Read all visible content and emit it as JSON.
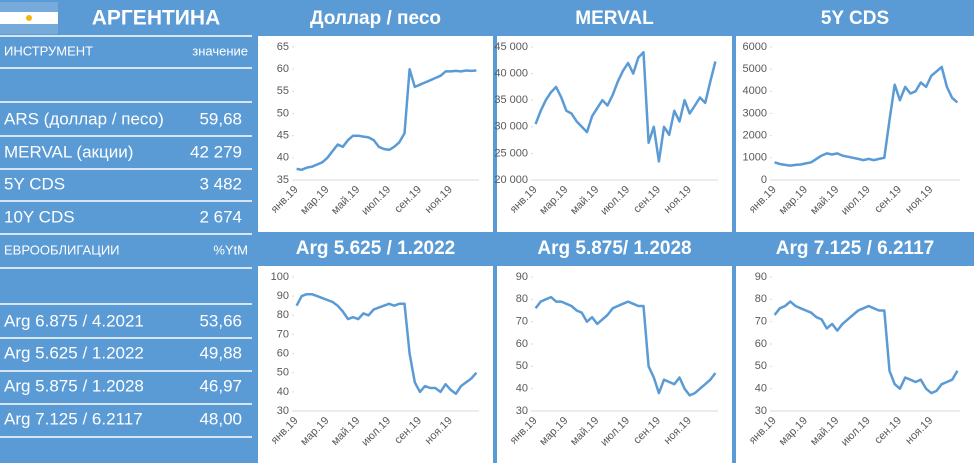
{
  "header": {
    "title": "АРГЕНТИНА"
  },
  "instruments": {
    "header": [
      "ИНСТРУМЕНТ",
      "значение"
    ],
    "rows": [
      [
        "ARS (доллар / песо)",
        "59,68"
      ],
      [
        "MERVAL (акции)",
        "42 279"
      ],
      [
        "5Y CDS",
        "3 482"
      ],
      [
        "10Y CDS",
        "2 674"
      ]
    ]
  },
  "eurobonds": {
    "header": [
      "ЕВРООБЛИГАЦИИ",
      "%YtM"
    ],
    "rows": [
      [
        "Arg 6.875 / 4.2021",
        "53,66"
      ],
      [
        "Arg 5.625 / 1.2022",
        "49,88"
      ],
      [
        "Arg 5.875 / 1.2028",
        "46,97"
      ],
      [
        "Arg 7.125 / 6.2117",
        "48,00"
      ]
    ]
  },
  "chart_data": [
    {
      "type": "line",
      "title": "Доллар / песо",
      "color": "#5b9bd5",
      "categories": [
        "янв.19",
        null,
        null,
        null,
        null,
        null,
        "мар.19",
        null,
        null,
        null,
        null,
        null,
        "май.19",
        null,
        null,
        null,
        null,
        null,
        "июл.19",
        null,
        null,
        null,
        null,
        null,
        "сен.19",
        null,
        null,
        null,
        null,
        null,
        "ноя.19",
        null,
        null,
        null,
        null,
        null
      ],
      "values": [
        37.5,
        37.3,
        37.8,
        38.0,
        38.5,
        39.0,
        40.0,
        41.5,
        43.0,
        42.5,
        44.0,
        45.0,
        45.0,
        44.8,
        44.6,
        44.0,
        42.5,
        42.0,
        41.8,
        42.5,
        43.5,
        45.5,
        60.0,
        56.0,
        56.5,
        57.0,
        57.5,
        58.0,
        58.5,
        59.5,
        59.5,
        59.6,
        59.5,
        59.7,
        59.6,
        59.7
      ],
      "ylim": [
        35,
        65
      ],
      "yticks": [
        35,
        40,
        45,
        50,
        55,
        60,
        65
      ]
    },
    {
      "type": "line",
      "title": "MERVAL",
      "color": "#5b9bd5",
      "categories": [
        "янв.19",
        null,
        null,
        null,
        null,
        null,
        "мар.19",
        null,
        null,
        null,
        null,
        null,
        "май.19",
        null,
        null,
        null,
        null,
        null,
        "июл.19",
        null,
        null,
        null,
        null,
        null,
        "сен.19",
        null,
        null,
        null,
        null,
        null,
        "ноя.19",
        null,
        null,
        null,
        null,
        null
      ],
      "values": [
        30500,
        33000,
        35000,
        36500,
        37500,
        35500,
        33000,
        32500,
        31000,
        30000,
        29000,
        32000,
        33500,
        35000,
        34000,
        36000,
        38500,
        40500,
        42000,
        40000,
        43000,
        44000,
        27000,
        30000,
        23500,
        30000,
        28500,
        33000,
        31000,
        35000,
        32500,
        34000,
        35500,
        34500,
        38500,
        42300
      ],
      "ylim": [
        20000,
        45000
      ],
      "yticks": [
        {
          "value": 20000,
          "label": "20 000"
        },
        {
          "value": 25000,
          "label": "25 000"
        },
        {
          "value": 30000,
          "label": "30 000"
        },
        {
          "value": 35000,
          "label": "35 000"
        },
        {
          "value": 40000,
          "label": "40 000"
        },
        {
          "value": 45000,
          "label": "45 000"
        }
      ]
    },
    {
      "type": "line",
      "title": "5Y CDS",
      "color": "#5b9bd5",
      "categories": [
        "янв.19",
        null,
        null,
        null,
        null,
        null,
        "мар.19",
        null,
        null,
        null,
        null,
        null,
        "май.19",
        null,
        null,
        null,
        null,
        null,
        "июл.19",
        null,
        null,
        null,
        null,
        null,
        "сен.19",
        null,
        null,
        null,
        null,
        null,
        "ноя.19",
        null,
        null,
        null,
        null,
        null
      ],
      "values": [
        800,
        720,
        680,
        650,
        680,
        700,
        750,
        800,
        950,
        1100,
        1200,
        1150,
        1200,
        1100,
        1050,
        1000,
        950,
        900,
        950,
        900,
        950,
        1000,
        2700,
        4300,
        3600,
        4200,
        3900,
        4000,
        4400,
        4200,
        4700,
        4900,
        5100,
        4200,
        3700,
        3500
      ],
      "ylim": [
        0,
        6000
      ],
      "yticks": [
        0,
        1000,
        2000,
        3000,
        4000,
        5000,
        6000
      ]
    },
    {
      "type": "line",
      "title": "Arg 5.625 / 1.2022",
      "color": "#5b9bd5",
      "categories": [
        "янв.19",
        null,
        null,
        null,
        null,
        null,
        "мар.19",
        null,
        null,
        null,
        null,
        null,
        "май.19",
        null,
        null,
        null,
        null,
        null,
        "июл.19",
        null,
        null,
        null,
        null,
        null,
        "сен.19",
        null,
        null,
        null,
        null,
        null,
        "ноя.19",
        null,
        null,
        null,
        null,
        null
      ],
      "values": [
        85,
        90,
        91,
        91,
        90,
        89,
        88,
        87,
        85,
        82,
        78,
        79,
        78,
        81,
        80,
        83,
        84,
        85,
        86,
        85,
        86,
        86,
        60,
        45,
        40,
        43,
        42,
        42,
        40,
        44,
        41,
        39,
        43,
        45,
        47,
        50
      ],
      "ylim": [
        30,
        100
      ],
      "yticks": [
        30,
        40,
        50,
        60,
        70,
        80,
        90,
        100
      ]
    },
    {
      "type": "line",
      "title": "Arg 5.875/ 1.2028",
      "color": "#5b9bd5",
      "categories": [
        "янв.19",
        null,
        null,
        null,
        null,
        null,
        "мар.19",
        null,
        null,
        null,
        null,
        null,
        "май.19",
        null,
        null,
        null,
        null,
        null,
        "июл.19",
        null,
        null,
        null,
        null,
        null,
        "сен.19",
        null,
        null,
        null,
        null,
        null,
        "ноя.19",
        null,
        null,
        null,
        null,
        null
      ],
      "values": [
        76,
        79,
        80,
        81,
        79,
        79,
        78,
        77,
        75,
        74,
        70,
        72,
        69,
        71,
        73,
        76,
        77,
        78,
        79,
        78,
        77,
        77,
        50,
        45,
        38,
        44,
        43,
        42,
        45,
        40,
        37,
        38,
        40,
        42,
        44,
        47
      ],
      "ylim": [
        30,
        90
      ],
      "yticks": [
        30,
        40,
        50,
        60,
        70,
        80,
        90
      ]
    },
    {
      "type": "line",
      "title": "Arg 7.125 / 6.2117",
      "color": "#5b9bd5",
      "categories": [
        "янв.19",
        null,
        null,
        null,
        null,
        null,
        "мар.19",
        null,
        null,
        null,
        null,
        null,
        "май.19",
        null,
        null,
        null,
        null,
        null,
        "июл.19",
        null,
        null,
        null,
        null,
        null,
        "сен.19",
        null,
        null,
        null,
        null,
        null,
        "ноя.19",
        null,
        null,
        null,
        null,
        null
      ],
      "values": [
        73,
        76,
        77,
        79,
        77,
        76,
        75,
        74,
        72,
        71,
        67,
        69,
        66,
        69,
        71,
        73,
        75,
        76,
        77,
        76,
        75,
        75,
        48,
        42,
        40,
        45,
        44,
        43,
        44,
        40,
        38,
        39,
        42,
        43,
        44,
        48
      ],
      "ylim": [
        30,
        90
      ],
      "yticks": [
        30,
        40,
        50,
        60,
        70,
        80,
        90
      ]
    }
  ]
}
